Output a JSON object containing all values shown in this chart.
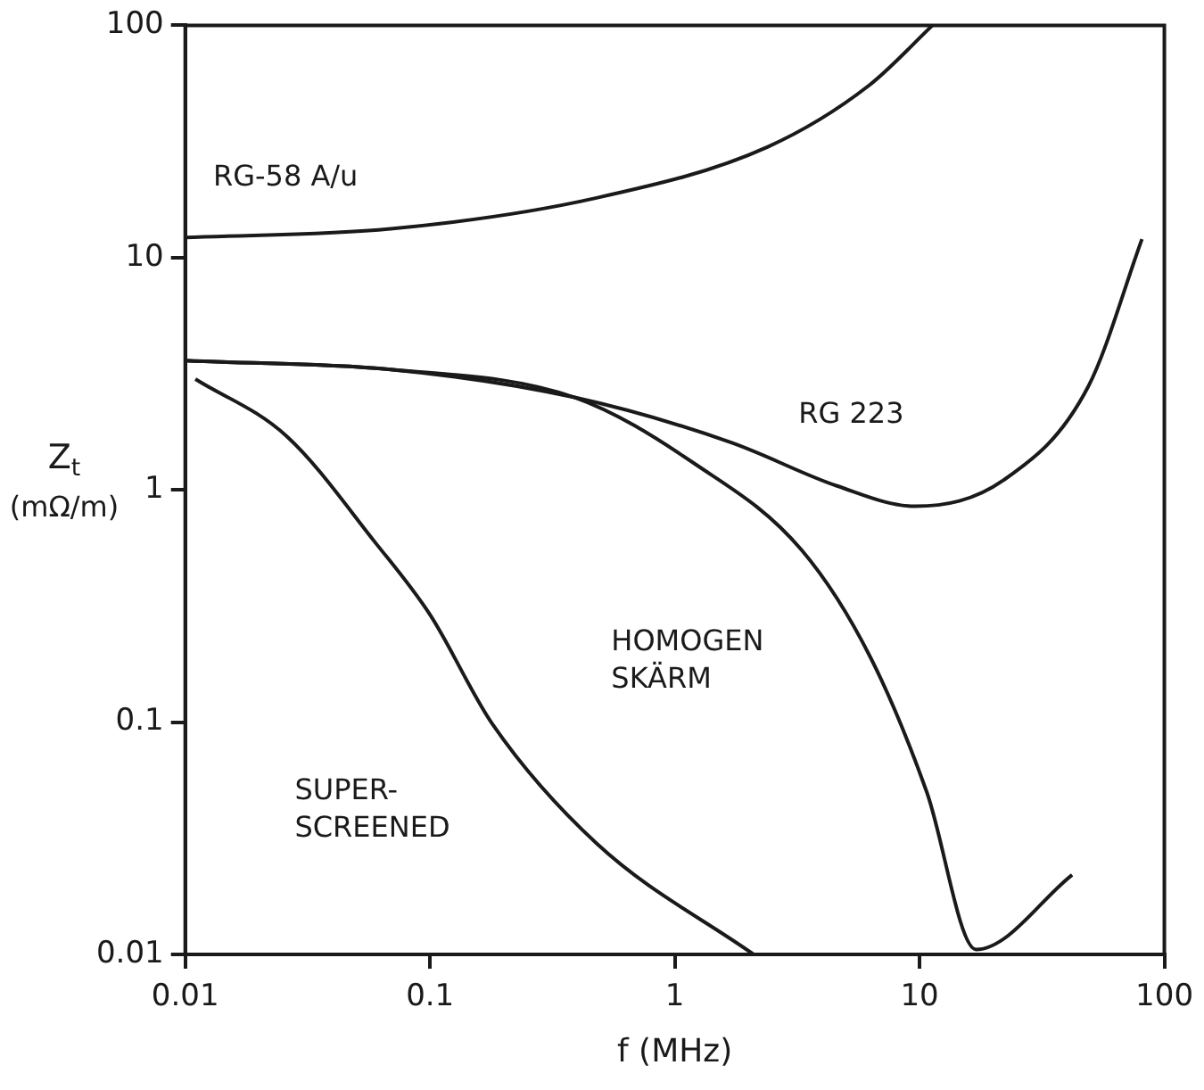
{
  "chart_data": {
    "type": "line",
    "xlabel": "f (MHz)",
    "ylabel": "Z$_{t}$ (mΩ/m)",
    "log": "xy",
    "grid": false,
    "xlim": [
      0.01,
      100
    ],
    "ylim": [
      0.01,
      100
    ],
    "xticks": [
      0.01,
      0.1,
      1,
      10,
      100
    ],
    "yticks": [
      0.01,
      0.1,
      1,
      10,
      100
    ],
    "series": [
      {
        "name": "RG-58 A/u",
        "color": "#1a1a1a",
        "x": [
          0.01,
          0.069,
          0.47,
          2.4,
          6.2,
          11.3
        ],
        "values": [
          12.2,
          13.3,
          18,
          30,
          55,
          100
        ]
      },
      {
        "name": "RG 223",
        "color": "#1a1a1a",
        "x": [
          0.01,
          0.069,
          0.39,
          1.7,
          4.6,
          9.6,
          22,
          49,
          81
        ],
        "values": [
          3.6,
          3.3,
          2.5,
          1.6,
          1.04,
          0.85,
          1.1,
          2.8,
          12
        ]
      },
      {
        "name": "HOMOGEN SKÄRM",
        "color": "#1a1a1a",
        "x": [
          0.01,
          0.069,
          0.39,
          1.2,
          3.3,
          6.3,
          10.7,
          17,
          42
        ],
        "values": [
          3.6,
          3.3,
          2.5,
          1.3,
          0.55,
          0.19,
          0.05,
          0.0105,
          0.022
        ]
      },
      {
        "name": "SUPER-SCREENED",
        "color": "#1a1a1a",
        "x": [
          0.011,
          0.026,
          0.06,
          0.1,
          0.18,
          0.48,
          2.1
        ],
        "values": [
          3.0,
          1.7,
          0.59,
          0.29,
          0.098,
          0.03,
          0.01
        ]
      }
    ]
  }
}
